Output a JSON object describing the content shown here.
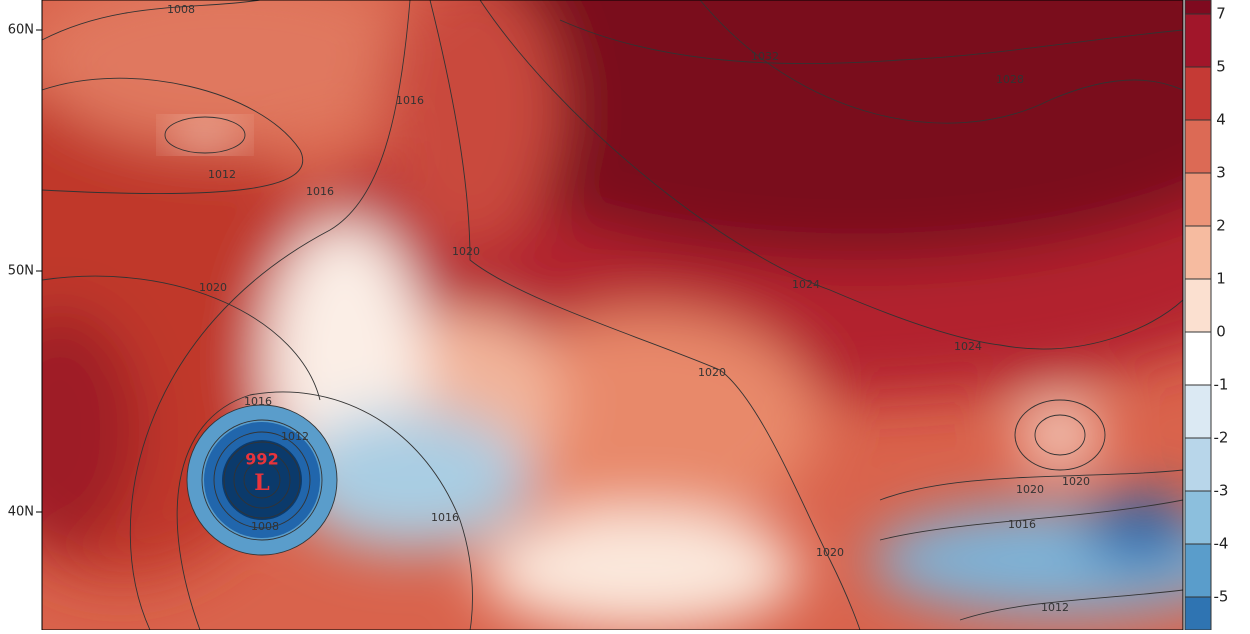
{
  "map": {
    "lat_labels": [
      "60N",
      "50N",
      "40N"
    ],
    "isobar_labels": [
      "1008",
      "1012",
      "1016",
      "1016",
      "1020",
      "1020",
      "1032",
      "1028",
      "1024",
      "1024",
      "1020",
      "1016",
      "1012",
      "1008",
      "1016",
      "1020",
      "1020",
      "1016",
      "1020",
      "1012"
    ],
    "low": {
      "pressure": "992",
      "symbol": "L"
    }
  },
  "colorbar": {
    "ticks": [
      7,
      5,
      4,
      3,
      2,
      1,
      0,
      -1,
      -2,
      -3,
      -4,
      -5
    ],
    "colors": [
      "#7f0a1f",
      "#a1162a",
      "#c53a35",
      "#dc6a55",
      "#ec9478",
      "#f6bba0",
      "#fbe0d0",
      "#ffffff",
      "#dbe9f3",
      "#b8d6ea",
      "#8cbfdd",
      "#5a9dcb",
      "#2f74b2"
    ]
  }
}
